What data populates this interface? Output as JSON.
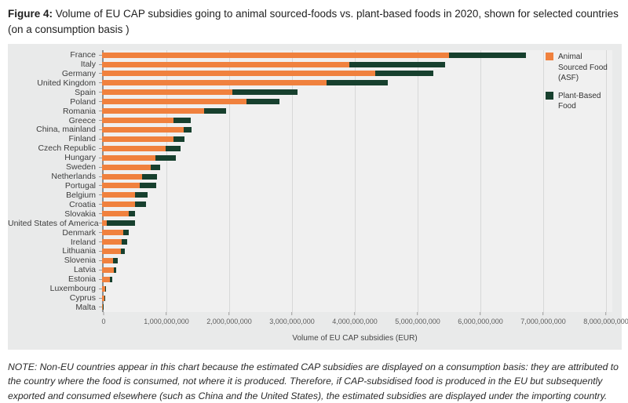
{
  "figure": {
    "label": "Figure 4:",
    "title": " Volume of EU CAP subsidies going to animal sourced-foods vs. plant-based foods in 2020, shown for selected countries (on a consumption basis )"
  },
  "chart_data": {
    "type": "bar",
    "orientation": "horizontal",
    "stacked": true,
    "categories": [
      "France",
      "Italy",
      "Germany",
      "United Kingdom",
      "Spain",
      "Poland",
      "Romania",
      "Greece",
      "China, mainland",
      "Finland",
      "Czech Republic",
      "Hungary",
      "Sweden",
      "Netherlands",
      "Portugal",
      "Belgium",
      "Croatia",
      "Slovakia",
      "United States of America",
      "Denmark",
      "Ireland",
      "Lithuania",
      "Slovenia",
      "Latvia",
      "Estonia",
      "Luxembourg",
      "Cyprus",
      "Malta"
    ],
    "series": [
      {
        "name": "Animal Sourced Food (ASF)",
        "color": "#f0813e",
        "values": [
          5530000000,
          3940000000,
          4350000000,
          3570000000,
          2070000000,
          2300000000,
          1630000000,
          1140000000,
          1300000000,
          1140000000,
          1010000000,
          850000000,
          780000000,
          640000000,
          600000000,
          520000000,
          530000000,
          430000000,
          80000000,
          340000000,
          310000000,
          300000000,
          180000000,
          190000000,
          130000000,
          50000000,
          40000000,
          15000000
        ]
      },
      {
        "name": "Plant-Based Food",
        "color": "#17402e",
        "values": [
          1220000000,
          1520000000,
          930000000,
          980000000,
          1040000000,
          520000000,
          340000000,
          270000000,
          120000000,
          170000000,
          240000000,
          330000000,
          150000000,
          230000000,
          260000000,
          200000000,
          170000000,
          100000000,
          440000000,
          80000000,
          90000000,
          60000000,
          65000000,
          40000000,
          30000000,
          18000000,
          15000000,
          8000000
        ]
      }
    ],
    "xlabel": "Volume of EU CAP subsidies (EUR)",
    "xlim": [
      0,
      8000000000
    ],
    "xticks": [
      "0",
      "1,000,000,000",
      "2,000,000,000",
      "3,000,000,000",
      "4,000,000,000",
      "5,000,000,000",
      "6,000,000,000",
      "7,000,000,000",
      "8,000,000,000"
    ],
    "grid": true,
    "legend_position": "top-right",
    "plot_background": "#f0f0f0",
    "panel_background": "#e9eaea"
  },
  "note": "NOTE: Non-EU countries appear in this chart because the estimated CAP subsidies are displayed on a consumption basis: they are attributed to the country where the food is consumed, not where it is produced. Therefore, if CAP-subsidised food is produced in the EU but subsequently exported and consumed elsewhere (such as China and the United States), the estimated subsidies are displayed under the importing country."
}
